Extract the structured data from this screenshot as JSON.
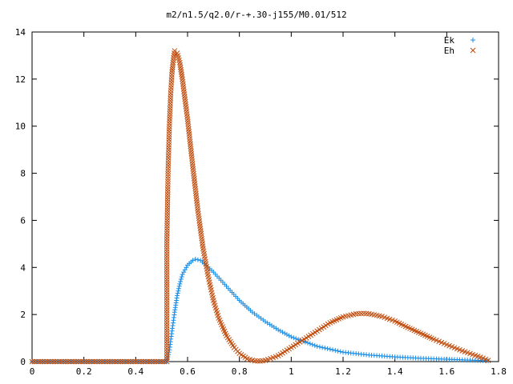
{
  "chart_data": {
    "type": "scatter",
    "title": "m2/n1.5/q2.0/r-+.30-j155/M0.01/512",
    "xlabel": "",
    "ylabel": "",
    "xlim": [
      0,
      1.8
    ],
    "ylim": [
      0,
      14
    ],
    "x_ticks": [
      "0",
      "0.2",
      "0.4",
      "0.6",
      "0.8",
      "1",
      "1.2",
      "1.4",
      "1.6",
      "1.8"
    ],
    "y_ticks": [
      "0",
      "2",
      "4",
      "6",
      "8",
      "10",
      "12",
      "14"
    ],
    "grid": false,
    "legend_position": "top-right",
    "series": [
      {
        "name": "Ek",
        "marker": "plus",
        "color": "#1a8fe6",
        "points": [
          [
            0.0,
            0.0
          ],
          [
            0.1,
            0.0
          ],
          [
            0.2,
            0.0
          ],
          [
            0.3,
            0.0
          ],
          [
            0.4,
            0.0
          ],
          [
            0.5,
            0.0
          ],
          [
            0.52,
            0.0
          ],
          [
            0.53,
            0.5
          ],
          [
            0.54,
            1.3
          ],
          [
            0.55,
            2.1
          ],
          [
            0.56,
            2.8
          ],
          [
            0.57,
            3.3
          ],
          [
            0.58,
            3.7
          ],
          [
            0.6,
            4.1
          ],
          [
            0.62,
            4.3
          ],
          [
            0.63,
            4.35
          ],
          [
            0.65,
            4.3
          ],
          [
            0.7,
            3.8
          ],
          [
            0.75,
            3.2
          ],
          [
            0.8,
            2.6
          ],
          [
            0.85,
            2.1
          ],
          [
            0.9,
            1.7
          ],
          [
            0.95,
            1.35
          ],
          [
            1.0,
            1.05
          ],
          [
            1.1,
            0.65
          ],
          [
            1.2,
            0.4
          ],
          [
            1.3,
            0.28
          ],
          [
            1.4,
            0.2
          ],
          [
            1.5,
            0.14
          ],
          [
            1.6,
            0.1
          ],
          [
            1.7,
            0.06
          ],
          [
            1.76,
            0.03
          ]
        ]
      },
      {
        "name": "Eh",
        "marker": "cross",
        "color": "#c04a0a",
        "points": [
          [
            0.0,
            0.0
          ],
          [
            0.1,
            0.0
          ],
          [
            0.2,
            0.0
          ],
          [
            0.3,
            0.0
          ],
          [
            0.4,
            0.0
          ],
          [
            0.5,
            0.0
          ],
          [
            0.52,
            0.0
          ],
          [
            0.52,
            5.0
          ],
          [
            0.525,
            8.2
          ],
          [
            0.53,
            10.1
          ],
          [
            0.535,
            11.4
          ],
          [
            0.54,
            12.3
          ],
          [
            0.545,
            12.8
          ],
          [
            0.55,
            13.2
          ],
          [
            0.56,
            13.1
          ],
          [
            0.57,
            12.7
          ],
          [
            0.58,
            12.0
          ],
          [
            0.6,
            10.3
          ],
          [
            0.62,
            8.3
          ],
          [
            0.64,
            6.4
          ],
          [
            0.66,
            4.8
          ],
          [
            0.68,
            3.6
          ],
          [
            0.7,
            2.6
          ],
          [
            0.72,
            1.85
          ],
          [
            0.75,
            1.1
          ],
          [
            0.78,
            0.6
          ],
          [
            0.8,
            0.35
          ],
          [
            0.83,
            0.12
          ],
          [
            0.86,
            0.03
          ],
          [
            0.88,
            0.02
          ],
          [
            0.9,
            0.05
          ],
          [
            0.95,
            0.25
          ],
          [
            1.0,
            0.6
          ],
          [
            1.05,
            0.95
          ],
          [
            1.1,
            1.3
          ],
          [
            1.15,
            1.65
          ],
          [
            1.2,
            1.9
          ],
          [
            1.25,
            2.03
          ],
          [
            1.28,
            2.05
          ],
          [
            1.3,
            2.03
          ],
          [
            1.35,
            1.92
          ],
          [
            1.4,
            1.72
          ],
          [
            1.45,
            1.45
          ],
          [
            1.5,
            1.2
          ],
          [
            1.55,
            0.95
          ],
          [
            1.6,
            0.72
          ],
          [
            1.65,
            0.5
          ],
          [
            1.7,
            0.3
          ],
          [
            1.74,
            0.15
          ],
          [
            1.76,
            0.05
          ]
        ]
      }
    ]
  }
}
